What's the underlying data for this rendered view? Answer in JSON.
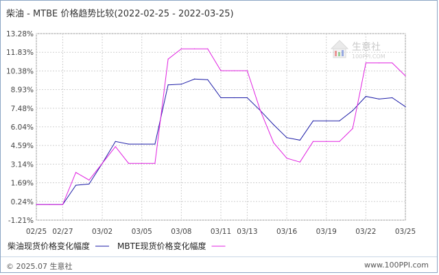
{
  "header": {
    "title": "柴油 - MTBE 价格趋势比较(2022-02-25 - 2022-03-25)"
  },
  "watermark": {
    "name": "生意社",
    "url": "100PPI.COM"
  },
  "footer": {
    "copyright": "© 2025.07 生意社",
    "site": "www.100PPI.com"
  },
  "chart_data": {
    "type": "line",
    "title": "柴油 - MTBE 价格趋势比较(2022-02-25 - 2022-03-25)",
    "xlabel": "",
    "ylabel": "",
    "ylim": [
      -1.21,
      13.28
    ],
    "grid": true,
    "legend_placement": "bottom-left",
    "yticks": [
      "13.28%",
      "11.83%",
      "10.38%",
      "8.93%",
      "7.48%",
      "6.04%",
      "4.59%",
      "3.14%",
      "1.69%",
      "0.24%",
      "-1.21%"
    ],
    "ytick_values": [
      13.28,
      11.83,
      10.38,
      8.93,
      7.48,
      6.04,
      4.59,
      3.14,
      1.69,
      0.24,
      -1.21
    ],
    "xticks": [
      "02/25",
      "02/27",
      "03/02",
      "03/05",
      "03/08",
      "03/11",
      "03/13",
      "03/16",
      "03/19",
      "03/22",
      "03/25"
    ],
    "x": [
      "02/25",
      "02/26",
      "02/27",
      "02/28",
      "03/01",
      "03/02",
      "03/03",
      "03/04",
      "03/05",
      "03/06",
      "03/07",
      "03/08",
      "03/09",
      "03/10",
      "03/11",
      "03/12",
      "03/13",
      "03/14",
      "03/15",
      "03/16",
      "03/17",
      "03/18",
      "03/19",
      "03/20",
      "03/21",
      "03/22",
      "03/23",
      "03/24",
      "03/25"
    ],
    "series": [
      {
        "name": "柴油现货价格变化幅度",
        "color": "#1a1aa6",
        "values": [
          0,
          0,
          0,
          1.5,
          1.6,
          3.2,
          4.9,
          4.7,
          4.7,
          4.7,
          9.3,
          9.35,
          9.75,
          9.7,
          8.3,
          8.3,
          8.3,
          7.3,
          6.2,
          5.2,
          5.0,
          6.5,
          6.5,
          6.5,
          7.3,
          8.4,
          8.2,
          8.3,
          7.6
        ]
      },
      {
        "name": "MBTE现货价格变化幅度",
        "color": "#e020e0",
        "values": [
          0,
          0,
          0,
          2.5,
          1.9,
          3.2,
          4.5,
          3.2,
          3.2,
          3.2,
          11.3,
          12.1,
          12.1,
          12.1,
          10.4,
          10.4,
          10.4,
          7.3,
          4.8,
          3.6,
          3.3,
          4.9,
          4.9,
          4.9,
          5.9,
          11.0,
          11.0,
          11.0,
          10.0
        ]
      }
    ]
  }
}
